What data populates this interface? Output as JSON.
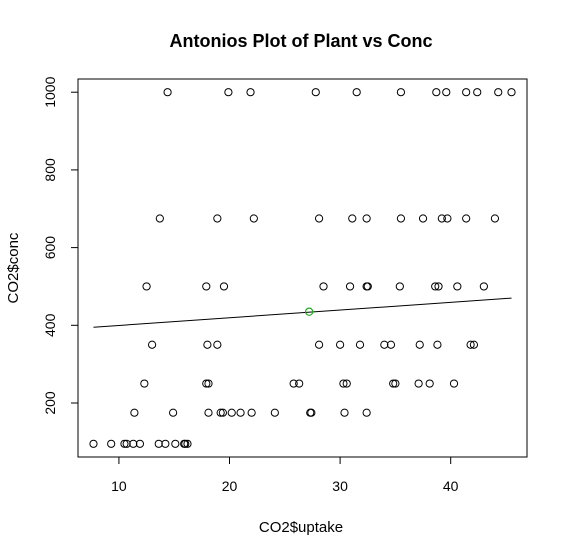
{
  "chart_data": {
    "type": "scatter",
    "title": "Antonios Plot of Plant vs Conc",
    "xlabel": "CO2$uptake",
    "ylabel": "CO2$conc",
    "xlim": [
      6.3,
      46.9
    ],
    "ylim": [
      61,
      1034
    ],
    "xticks": [
      10,
      20,
      30,
      40
    ],
    "yticks": [
      200,
      400,
      600,
      800,
      1000
    ],
    "grid": false,
    "point_color": "#000000",
    "highlight_color": "#22aa22",
    "points": [
      [
        7.7,
        95
      ],
      [
        9.3,
        95
      ],
      [
        10.5,
        95
      ],
      [
        10.7,
        95
      ],
      [
        11.3,
        95
      ],
      [
        11.9,
        95
      ],
      [
        13.6,
        95
      ],
      [
        14.2,
        95
      ],
      [
        15.1,
        95
      ],
      [
        15.9,
        95
      ],
      [
        16.0,
        95
      ],
      [
        16.2,
        95
      ],
      [
        11.4,
        175
      ],
      [
        14.9,
        175
      ],
      [
        18.1,
        175
      ],
      [
        19.2,
        175
      ],
      [
        19.4,
        175
      ],
      [
        20.2,
        175
      ],
      [
        21.0,
        175
      ],
      [
        22.0,
        175
      ],
      [
        24.1,
        175
      ],
      [
        27.3,
        175
      ],
      [
        27.4,
        175
      ],
      [
        30.4,
        175
      ],
      [
        32.4,
        175
      ],
      [
        12.3,
        250
      ],
      [
        17.9,
        250
      ],
      [
        18.1,
        250
      ],
      [
        25.8,
        250
      ],
      [
        26.3,
        250
      ],
      [
        30.3,
        250
      ],
      [
        30.6,
        250
      ],
      [
        34.8,
        250
      ],
      [
        35.0,
        250
      ],
      [
        37.1,
        250
      ],
      [
        38.1,
        250
      ],
      [
        40.3,
        250
      ],
      [
        13.0,
        350
      ],
      [
        18.0,
        350
      ],
      [
        18.9,
        350
      ],
      [
        28.1,
        350
      ],
      [
        30.0,
        350
      ],
      [
        31.8,
        350
      ],
      [
        34.0,
        350
      ],
      [
        34.6,
        350
      ],
      [
        37.2,
        350
      ],
      [
        38.8,
        350
      ],
      [
        41.8,
        350
      ],
      [
        42.1,
        350
      ],
      [
        12.5,
        500
      ],
      [
        17.9,
        500
      ],
      [
        19.5,
        500
      ],
      [
        28.5,
        500
      ],
      [
        30.9,
        500
      ],
      [
        32.4,
        500
      ],
      [
        32.5,
        500
      ],
      [
        35.4,
        500
      ],
      [
        38.6,
        500
      ],
      [
        38.9,
        500
      ],
      [
        40.6,
        500
      ],
      [
        43.0,
        500
      ],
      [
        13.7,
        675
      ],
      [
        18.9,
        675
      ],
      [
        22.2,
        675
      ],
      [
        28.1,
        675
      ],
      [
        31.1,
        675
      ],
      [
        32.4,
        675
      ],
      [
        35.5,
        675
      ],
      [
        37.5,
        675
      ],
      [
        39.2,
        675
      ],
      [
        39.7,
        675
      ],
      [
        41.4,
        675
      ],
      [
        44.0,
        675
      ],
      [
        14.4,
        1000
      ],
      [
        19.9,
        1000
      ],
      [
        21.9,
        1000
      ],
      [
        27.8,
        1000
      ],
      [
        31.5,
        1000
      ],
      [
        35.5,
        1000
      ],
      [
        38.7,
        1000
      ],
      [
        39.6,
        1000
      ],
      [
        41.4,
        1000
      ],
      [
        42.4,
        1000
      ],
      [
        44.3,
        1000
      ],
      [
        45.5,
        1000
      ]
    ],
    "highlight_point": [
      27.2,
      435
    ],
    "trend_line": [
      [
        7.7,
        395
      ],
      [
        45.5,
        470
      ]
    ]
  }
}
